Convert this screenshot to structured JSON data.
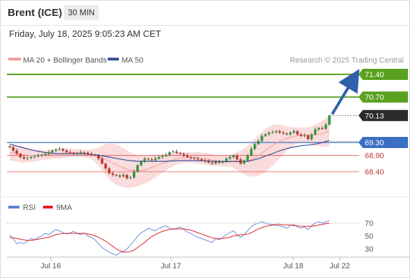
{
  "header": {
    "instrument": "Brent (ICE)",
    "timeframe": "30 MIN",
    "timestamp": "Friday, July 18, 2025 9:05:23 AM CET"
  },
  "legend": {
    "ma20": "MA 20 + Bollinger Bands",
    "ma50": "MA 50",
    "credit": "Research © 2025 Trading Central"
  },
  "colors": {
    "resistance": "#5aa11f",
    "current": "#2b2b2b",
    "pivot": "#3a6fc4",
    "support": "#e05050",
    "arrow": "#2f5fa8",
    "ma20_band": "#f8c9c9",
    "ma50": "#3a4f9c",
    "rsi": "#5b7fd6",
    "rsi_ma": "#e02020"
  },
  "chart_data": [
    {
      "type": "candlestick",
      "title": "",
      "x_ticks": [
        "Jul 16",
        "Jul 17",
        "Jul 18",
        "Jul 22"
      ],
      "ylim": [
        68.05,
        71.75
      ],
      "current_price": 70.13,
      "target": 71.4,
      "levels": [
        {
          "value": 71.4,
          "label": "71.40",
          "kind": "resistance"
        },
        {
          "value": 70.7,
          "label": "70.70",
          "kind": "resistance"
        },
        {
          "value": 70.13,
          "label": "70.13",
          "kind": "current"
        },
        {
          "value": 69.3,
          "label": "69.30",
          "kind": "pivot"
        },
        {
          "value": 68.9,
          "label": "68.90",
          "kind": "support"
        },
        {
          "value": 68.4,
          "label": "68.40",
          "kind": "support"
        }
      ],
      "closes": [
        69.15,
        69.05,
        68.95,
        68.85,
        68.8,
        68.82,
        68.85,
        68.87,
        68.9,
        68.92,
        68.95,
        69.0,
        69.05,
        69.08,
        69.1,
        69.05,
        69.0,
        68.98,
        68.95,
        68.97,
        69.0,
        68.98,
        68.95,
        68.92,
        68.9,
        68.8,
        68.65,
        68.5,
        68.35,
        68.3,
        68.28,
        68.25,
        68.3,
        68.2,
        68.22,
        68.4,
        68.6,
        68.7,
        68.8,
        68.78,
        68.75,
        68.8,
        68.85,
        68.88,
        68.92,
        69.0,
        69.02,
        68.98,
        68.95,
        68.9,
        68.85,
        68.82,
        68.8,
        68.78,
        68.75,
        68.72,
        68.68,
        68.65,
        68.7,
        68.68,
        68.72,
        68.8,
        68.85,
        68.9,
        68.78,
        68.65,
        68.75,
        68.9,
        69.1,
        69.25,
        69.35,
        69.5,
        69.55,
        69.6,
        69.62,
        69.65,
        69.6,
        69.58,
        69.55,
        69.6,
        69.65,
        69.55,
        69.5,
        69.52,
        69.4,
        69.55,
        69.7,
        69.75,
        69.72,
        69.85,
        70.13
      ],
      "ma20": [
        69.0,
        68.98,
        68.96,
        68.94,
        68.92,
        68.91,
        68.9,
        68.9,
        68.9,
        68.91,
        68.92,
        68.93,
        68.94,
        68.95,
        68.96,
        68.97,
        68.98,
        68.98,
        68.98,
        68.98,
        68.97,
        68.96,
        68.95,
        68.93,
        68.9,
        68.86,
        68.82,
        68.77,
        68.72,
        68.67,
        68.62,
        68.57,
        68.52,
        68.48,
        68.45,
        68.43,
        68.43,
        68.44,
        68.46,
        68.49,
        68.53,
        68.57,
        68.61,
        68.65,
        68.69,
        68.73,
        68.77,
        68.8,
        68.82,
        68.83,
        68.84,
        68.84,
        68.83,
        68.82,
        68.81,
        68.8,
        68.78,
        68.76,
        68.74,
        68.73,
        68.72,
        68.72,
        68.73,
        68.74,
        68.73,
        68.71,
        68.71,
        68.73,
        68.77,
        68.83,
        68.9,
        68.98,
        69.06,
        69.14,
        69.21,
        69.28,
        69.33,
        69.38,
        69.42,
        69.46,
        69.49,
        69.51,
        69.52,
        69.53,
        69.52,
        69.52,
        69.53,
        69.55,
        69.57,
        69.61,
        69.66
      ],
      "bb_width": [
        0.25,
        0.25,
        0.25,
        0.25,
        0.25,
        0.22,
        0.2,
        0.18,
        0.17,
        0.16,
        0.15,
        0.15,
        0.15,
        0.15,
        0.15,
        0.15,
        0.14,
        0.13,
        0.12,
        0.12,
        0.12,
        0.12,
        0.13,
        0.15,
        0.2,
        0.28,
        0.38,
        0.48,
        0.55,
        0.6,
        0.62,
        0.62,
        0.6,
        0.58,
        0.55,
        0.5,
        0.48,
        0.45,
        0.42,
        0.4,
        0.38,
        0.35,
        0.32,
        0.28,
        0.25,
        0.22,
        0.2,
        0.18,
        0.17,
        0.16,
        0.16,
        0.16,
        0.17,
        0.18,
        0.18,
        0.18,
        0.18,
        0.18,
        0.17,
        0.16,
        0.16,
        0.16,
        0.18,
        0.22,
        0.28,
        0.34,
        0.4,
        0.46,
        0.52,
        0.58,
        0.62,
        0.65,
        0.66,
        0.65,
        0.62,
        0.58,
        0.52,
        0.45,
        0.38,
        0.32,
        0.28,
        0.25,
        0.24,
        0.24,
        0.25,
        0.28,
        0.32,
        0.36,
        0.4,
        0.44,
        0.48
      ],
      "ma50": [
        69.25,
        69.22,
        69.19,
        69.16,
        69.13,
        69.1,
        69.07,
        69.05,
        69.03,
        69.01,
        68.99,
        68.98,
        68.97,
        68.96,
        68.95,
        68.95,
        68.95,
        68.95,
        68.95,
        68.95,
        68.95,
        68.94,
        68.94,
        68.93,
        68.92,
        68.91,
        68.89,
        68.87,
        68.85,
        68.83,
        68.81,
        68.79,
        68.77,
        68.75,
        68.74,
        68.73,
        68.72,
        68.72,
        68.72,
        68.72,
        68.72,
        68.72,
        68.72,
        68.72,
        68.72,
        68.73,
        68.73,
        68.74,
        68.74,
        68.74,
        68.74,
        68.74,
        68.74,
        68.74,
        68.74,
        68.73,
        68.73,
        68.72,
        68.72,
        68.71,
        68.71,
        68.71,
        68.71,
        68.71,
        68.71,
        68.71,
        68.71,
        68.72,
        68.74,
        68.77,
        68.8,
        68.84,
        68.88,
        68.92,
        68.96,
        69.0,
        69.04,
        69.08,
        69.11,
        69.14,
        69.16,
        69.18,
        69.2,
        69.21,
        69.22,
        69.23,
        69.25,
        69.27,
        69.3,
        69.33,
        69.36
      ]
    },
    {
      "type": "line",
      "title": "",
      "x_ticks": [
        "Jul 16",
        "Jul 17",
        "Jul 18",
        "Jul 22"
      ],
      "y_ticks": [
        70,
        50,
        30
      ],
      "ylim": [
        15,
        80
      ],
      "series": [
        {
          "name": "RSI",
          "values": [
            52,
            45,
            38,
            40,
            38,
            42,
            46,
            44,
            48,
            50,
            54,
            52,
            56,
            60,
            58,
            55,
            53,
            55,
            57,
            54,
            52,
            55,
            50,
            48,
            44,
            38,
            32,
            28,
            25,
            22,
            20,
            24,
            26,
            30,
            36,
            42,
            50,
            55,
            58,
            62,
            60,
            58,
            62,
            64,
            66,
            62,
            60,
            62,
            64,
            60,
            56,
            54,
            50,
            48,
            46,
            44,
            42,
            40,
            46,
            44,
            48,
            52,
            55,
            58,
            52,
            48,
            52,
            58,
            64,
            68,
            70,
            72,
            70,
            68,
            68,
            66,
            66,
            64,
            62,
            66,
            68,
            64,
            62,
            64,
            60,
            66,
            70,
            72,
            70,
            72,
            74
          ]
        },
        {
          "name": "9MA",
          "values": [
            48,
            47,
            46,
            45,
            44,
            43,
            43,
            44,
            45,
            46,
            47,
            48,
            50,
            52,
            53,
            54,
            54,
            54,
            54,
            54,
            54,
            54,
            53,
            52,
            50,
            48,
            45,
            42,
            38,
            34,
            30,
            27,
            25,
            25,
            26,
            28,
            32,
            36,
            40,
            45,
            49,
            52,
            55,
            57,
            59,
            60,
            61,
            61,
            61,
            61,
            60,
            59,
            57,
            55,
            53,
            51,
            49,
            47,
            46,
            46,
            46,
            47,
            48,
            50,
            51,
            52,
            52,
            53,
            55,
            58,
            61,
            63,
            65,
            66,
            67,
            68,
            68,
            67,
            67,
            67,
            66,
            66,
            65,
            65,
            65,
            65,
            66,
            67,
            68,
            69,
            70
          ]
        }
      ]
    }
  ]
}
